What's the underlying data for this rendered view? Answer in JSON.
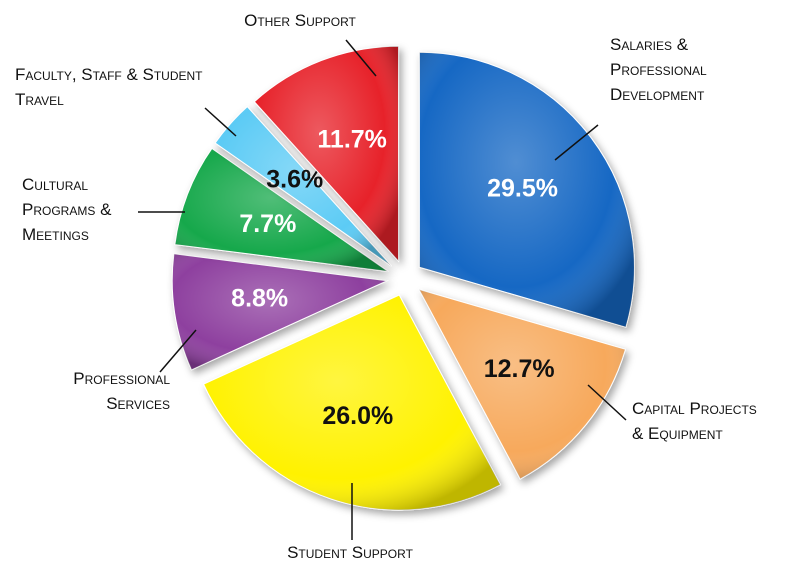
{
  "chart_data": {
    "type": "pie",
    "categories": [
      "Salaries & Professional Development",
      "Capital Projects & Equipment",
      "Student Support",
      "Professional Services",
      "Cultural Programs & Meetings",
      "Faculty, Staff & Student Travel",
      "Other Support"
    ],
    "values": [
      29.5,
      12.7,
      26.0,
      8.8,
      7.7,
      3.6,
      11.7
    ],
    "value_labels": [
      "29.5%",
      "12.7%",
      "26.0%",
      "8.8%",
      "7.7%",
      "3.6%",
      "11.7%"
    ],
    "colors": [
      "#1467c4",
      "#f7a95c",
      "#fff200",
      "#8e3f9f",
      "#13a84b",
      "#5bcbf5",
      "#e7212b"
    ]
  }
}
